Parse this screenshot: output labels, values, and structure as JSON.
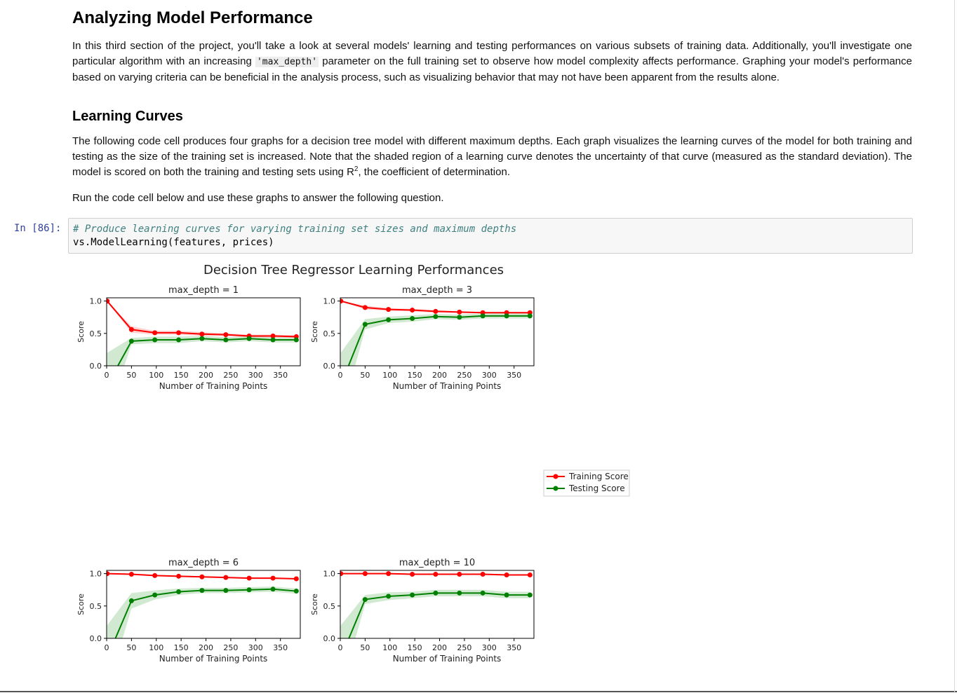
{
  "section": {
    "title": "Analyzing Model Performance",
    "intro_part1": "In this third section of the project, you'll take a look at several models' learning and testing performances on various subsets of training data. Additionally, you'll investigate one particular algorithm with an increasing ",
    "intro_code": "'max_depth'",
    "intro_part2": " parameter on the full training set to observe how model complexity affects performance. Graphing your model's performance based on varying criteria can be beneficial in the analysis process, such as visualizing behavior that may not have been apparent from the results alone."
  },
  "learning_curves": {
    "heading": "Learning Curves",
    "para1_part1": "The following code cell produces four graphs for a decision tree model with different maximum depths. Each graph visualizes the learning curves of the model for both training and testing as the size of the training set is increased. Note that the shaded region of a learning curve denotes the uncertainty of that curve (measured as the standard deviation). The model is scored on both the training and testing sets using R",
    "para1_sup": "2",
    "para1_part2": ", the coefficient of determination.",
    "para2": "Run the code cell below and use these graphs to answer the following question."
  },
  "cell": {
    "prompt": "In [86]:",
    "comment": "# Produce learning curves for varying training set sizes and maximum depths",
    "code": "vs.ModelLearning(features, prices)"
  },
  "chart_data": {
    "type": "line",
    "title": "Decision Tree Regressor Learning Performances",
    "xlabel": "Number of Training Points",
    "ylabel": "Score",
    "xlim": [
      0,
      390
    ],
    "ylim": [
      0,
      1.05
    ],
    "xticks": [
      0,
      50,
      100,
      150,
      200,
      250,
      300,
      350
    ],
    "yticks": [
      0.0,
      0.5,
      1.0
    ],
    "legend": {
      "placement": "right",
      "entries": [
        "Training Score",
        "Testing Score"
      ]
    },
    "colors": {
      "training": "#ff0000",
      "testing": "#008000"
    },
    "x": [
      1,
      50,
      97,
      145,
      192,
      240,
      287,
      335,
      382
    ],
    "subplots": [
      {
        "title": "max_depth = 1",
        "training": [
          1.0,
          0.56,
          0.51,
          0.51,
          0.49,
          0.48,
          0.46,
          0.46,
          0.45
        ],
        "training_std": [
          0.0,
          0.05,
          0.03,
          0.03,
          0.03,
          0.02,
          0.02,
          0.02,
          0.02
        ],
        "testing": [
          -0.3,
          0.38,
          0.4,
          0.4,
          0.42,
          0.4,
          0.42,
          0.4,
          0.4
        ],
        "testing_std": [
          0.5,
          0.05,
          0.05,
          0.05,
          0.04,
          0.04,
          0.04,
          0.04,
          0.04
        ]
      },
      {
        "title": "max_depth = 3",
        "training": [
          1.0,
          0.9,
          0.87,
          0.86,
          0.84,
          0.83,
          0.82,
          0.82,
          0.82
        ],
        "training_std": [
          0.0,
          0.03,
          0.02,
          0.02,
          0.02,
          0.01,
          0.01,
          0.01,
          0.01
        ],
        "testing": [
          -0.3,
          0.64,
          0.71,
          0.73,
          0.76,
          0.75,
          0.77,
          0.77,
          0.77
        ],
        "testing_std": [
          0.5,
          0.08,
          0.05,
          0.05,
          0.04,
          0.04,
          0.04,
          0.04,
          0.04
        ]
      },
      {
        "title": "max_depth = 6",
        "training": [
          1.0,
          0.99,
          0.97,
          0.96,
          0.95,
          0.94,
          0.93,
          0.93,
          0.92
        ],
        "training_std": [
          0.0,
          0.01,
          0.01,
          0.01,
          0.01,
          0.01,
          0.01,
          0.01,
          0.01
        ],
        "testing": [
          -0.3,
          0.58,
          0.67,
          0.72,
          0.74,
          0.74,
          0.75,
          0.76,
          0.73
        ],
        "testing_std": [
          0.5,
          0.12,
          0.07,
          0.05,
          0.04,
          0.04,
          0.04,
          0.04,
          0.04
        ]
      },
      {
        "title": "max_depth = 10",
        "training": [
          1.0,
          1.0,
          1.0,
          0.99,
          0.99,
          0.99,
          0.99,
          0.98,
          0.98
        ],
        "training_std": [
          0.0,
          0.01,
          0.01,
          0.01,
          0.01,
          0.01,
          0.01,
          0.01,
          0.01
        ],
        "testing": [
          -0.3,
          0.6,
          0.65,
          0.67,
          0.7,
          0.7,
          0.7,
          0.67,
          0.67
        ],
        "testing_std": [
          0.5,
          0.07,
          0.06,
          0.05,
          0.05,
          0.05,
          0.05,
          0.05,
          0.05
        ]
      }
    ]
  }
}
